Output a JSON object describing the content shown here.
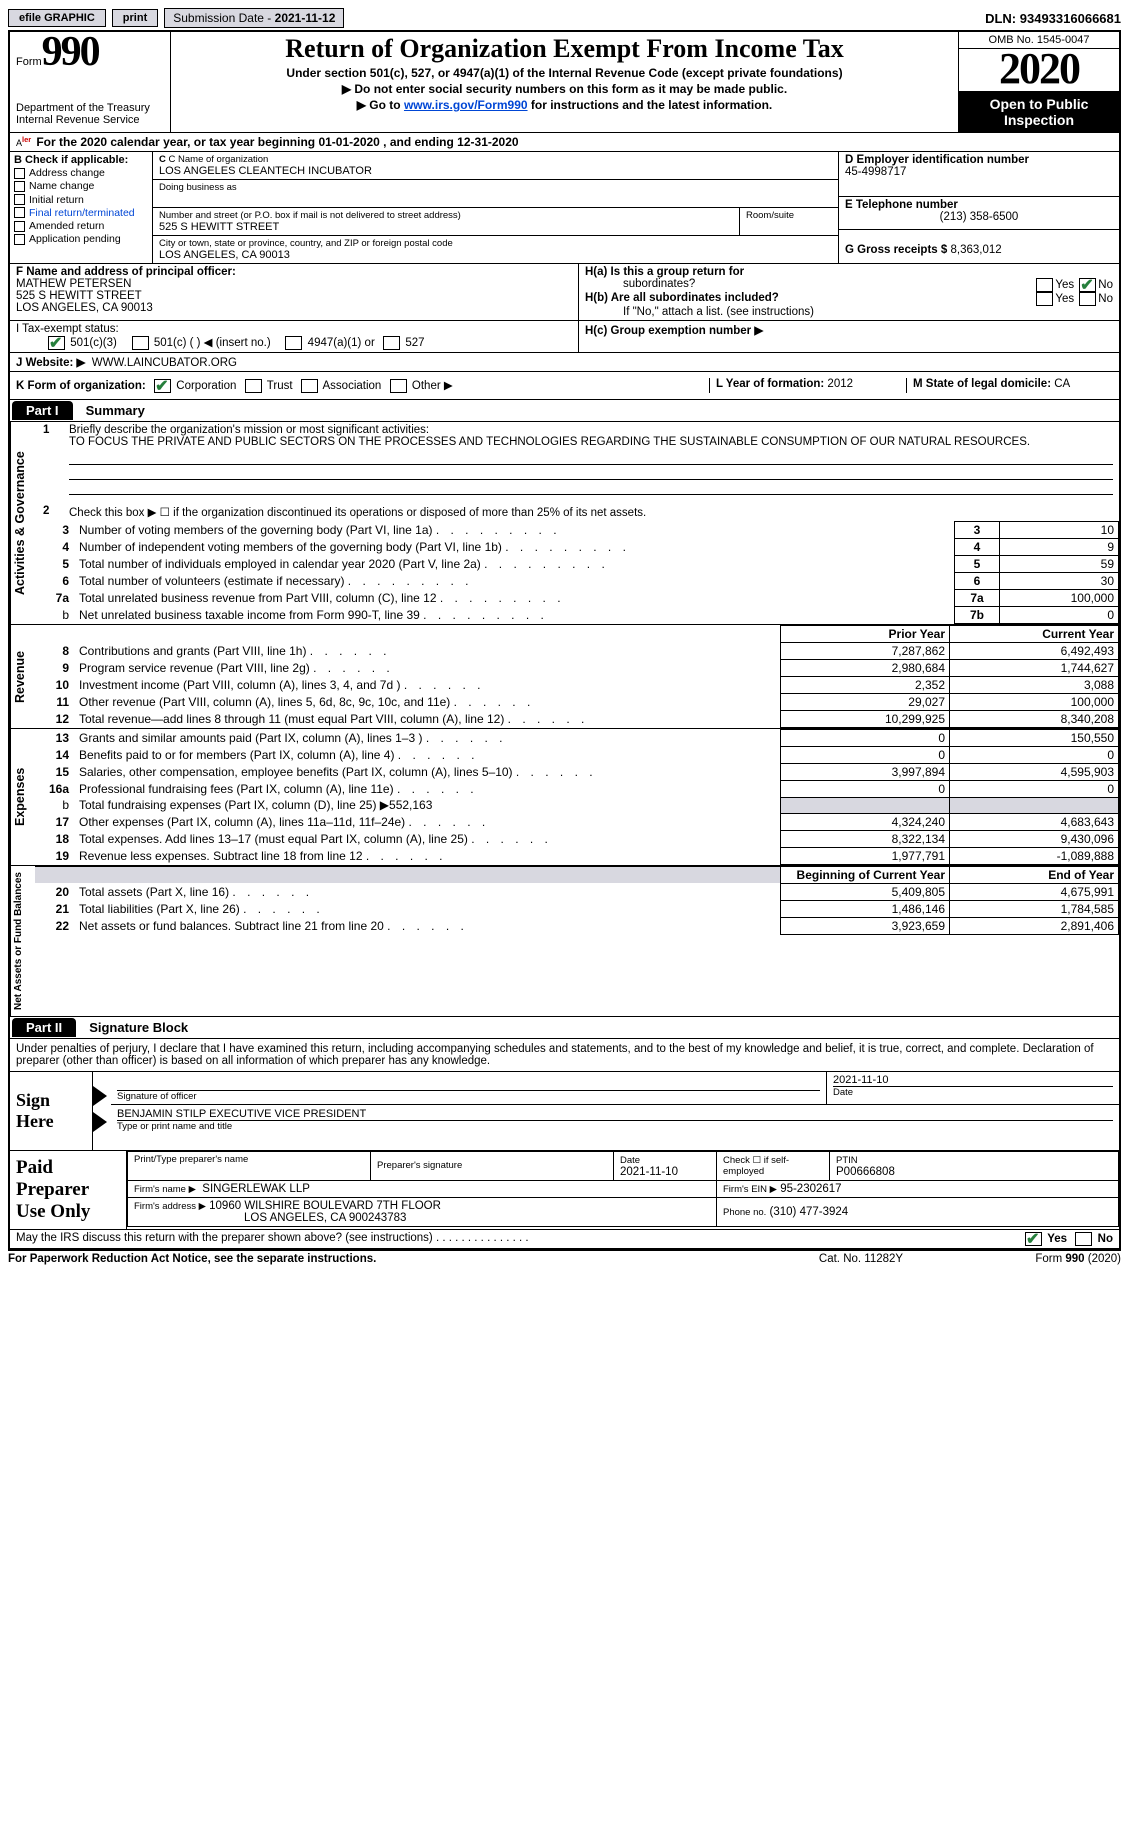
{
  "topbar": {
    "efile": "efile GRAPHIC",
    "print": "print",
    "submission_label": "Submission Date -",
    "submission_date": "2021-11-12",
    "dln_label": "DLN:",
    "dln": "93493316066681"
  },
  "header": {
    "form_prefix": "Form",
    "form_number": "990",
    "dept1": "Department of the Treasury",
    "dept2": "Internal Revenue Service",
    "title": "Return of Organization Exempt From Income Tax",
    "subtitle": "Under section 501(c), 527, or 4947(a)(1) of the Internal Revenue Code (except private foundations)",
    "donot": "▶ Do not enter social security numbers on this form as it may be made public.",
    "goto_prefix": "▶ Go to ",
    "goto_link": "www.irs.gov/Form990",
    "goto_suffix": " for instructions and the latest information.",
    "omb": "OMB No. 1545-0047",
    "year": "2020",
    "open1": "Open to Public",
    "open2": "Inspection"
  },
  "periodA": {
    "prefix": "A",
    "alert_suffix": "lert",
    "text": "For the 2020 calendar year, or tax year beginning 01-01-2020     , and ending 12-31-2020"
  },
  "B": {
    "hdr": "B Check if applicable:",
    "items": [
      "Address change",
      "Name change",
      "Initial return",
      "Final return/terminated",
      "Amended return",
      "Application pending"
    ]
  },
  "C": {
    "c_lbl": "C Name of organization",
    "org": "LOS ANGELES CLEANTECH INCUBATOR",
    "dba_lbl": "Doing business as",
    "dba": "",
    "addr_lbl": "Number and street (or P.O. box if mail is not delivered to street address)",
    "room_lbl": "Room/suite",
    "addr": "525 S HEWITT STREET",
    "city_lbl": "City or town, state or province, country, and ZIP or foreign postal code",
    "city": "LOS ANGELES, CA  90013"
  },
  "DE": {
    "d_lbl": "D Employer identification number",
    "ein": "45-4998717",
    "e_lbl": "E Telephone number",
    "phone": "(213) 358-6500",
    "g_lbl": "G Gross receipts $",
    "gross": "8,363,012"
  },
  "F": {
    "lbl": "F  Name and address of principal officer:",
    "name": "MATHEW PETERSEN",
    "addr1": "525 S HEWITT STREET",
    "addr2": "LOS ANGELES, CA  90013"
  },
  "H": {
    "a_lbl": "H(a)  Is this a group return for",
    "a_sub": "subordinates?",
    "b_lbl": "H(b)  Are all subordinates included?",
    "b_note": "If \"No,\" attach a list. (see instructions)",
    "c_lbl": "H(c)  Group exemption number ▶",
    "yes": "Yes",
    "no": "No"
  },
  "I": {
    "lbl": "I     Tax-exempt status:",
    "opts": [
      "501(c)(3)",
      "501(c) (  ) ◀ (insert no.)",
      "4947(a)(1) or",
      "527"
    ]
  },
  "J": {
    "lbl": "J    Website: ▶",
    "val": "WWW.LAINCUBATOR.ORG"
  },
  "K": {
    "lbl": "K Form of organization:",
    "opts": [
      "Corporation",
      "Trust",
      "Association",
      "Other ▶"
    ]
  },
  "L": {
    "lbl": "L Year of formation:",
    "val": "2012"
  },
  "M": {
    "lbl": "M State of legal domicile:",
    "val": "CA"
  },
  "parts": {
    "p1": "Part I",
    "p1sub": "Summary",
    "p2": "Part II",
    "p2sub": "Signature Block"
  },
  "sections": {
    "ag": "Activities & Governance",
    "rev": "Revenue",
    "exp": "Expenses",
    "na": "Net Assets or\nFund Balances"
  },
  "mission_lbl": "1",
  "mission_txt": "Briefly describe the organization's mission or most significant activities:",
  "mission": "TO FOCUS THE PRIVATE AND PUBLIC SECTORS ON THE PROCESSES AND TECHNOLOGIES REGARDING THE SUSTAINABLE CONSUMPTION OF OUR NATURAL RESOURCES.",
  "line2": "Check this box ▶ ☐  if the organization discontinued its operations or disposed of more than 25% of its net assets.",
  "ag_lines": [
    {
      "n": "3",
      "t": "Number of voting members of the governing body (Part VI, line 1a)",
      "box": "3",
      "v": "10"
    },
    {
      "n": "4",
      "t": "Number of independent voting members of the governing body (Part VI, line 1b)",
      "box": "4",
      "v": "9"
    },
    {
      "n": "5",
      "t": "Total number of individuals employed in calendar year 2020 (Part V, line 2a)",
      "box": "5",
      "v": "59"
    },
    {
      "n": "6",
      "t": "Total number of volunteers (estimate if necessary)",
      "box": "6",
      "v": "30"
    },
    {
      "n": "7a",
      "t": "Total unrelated business revenue from Part VIII, column (C), line 12",
      "box": "7a",
      "v": "100,000"
    },
    {
      "n": "b",
      "t": "Net unrelated business taxable income from Form 990-T, line 39",
      "box": "7b",
      "v": "0",
      "sub": true
    }
  ],
  "cols": {
    "prior": "Prior Year",
    "current": "Current Year",
    "begin": "Beginning of Current Year",
    "end": "End of Year"
  },
  "rev_lines": [
    {
      "n": "8",
      "t": "Contributions and grants (Part VIII, line 1h)",
      "p": "7,287,862",
      "c": "6,492,493"
    },
    {
      "n": "9",
      "t": "Program service revenue (Part VIII, line 2g)",
      "p": "2,980,684",
      "c": "1,744,627"
    },
    {
      "n": "10",
      "t": "Investment income (Part VIII, column (A), lines 3, 4, and 7d )",
      "p": "2,352",
      "c": "3,088"
    },
    {
      "n": "11",
      "t": "Other revenue (Part VIII, column (A), lines 5, 6d, 8c, 9c, 10c, and 11e)",
      "p": "29,027",
      "c": "100,000"
    },
    {
      "n": "12",
      "t": "Total revenue—add lines 8 through 11 (must equal Part VIII, column (A), line 12)",
      "p": "10,299,925",
      "c": "8,340,208"
    }
  ],
  "exp_lines": [
    {
      "n": "13",
      "t": "Grants and similar amounts paid (Part IX, column (A), lines 1–3 )",
      "p": "0",
      "c": "150,550"
    },
    {
      "n": "14",
      "t": "Benefits paid to or for members (Part IX, column (A), line 4)",
      "p": "0",
      "c": "0"
    },
    {
      "n": "15",
      "t": "Salaries, other compensation, employee benefits (Part IX, column (A), lines 5–10)",
      "p": "3,997,894",
      "c": "4,595,903"
    },
    {
      "n": "16a",
      "t": "Professional fundraising fees (Part IX, column (A), line 11e)",
      "p": "0",
      "c": "0"
    }
  ],
  "exp_16b": {
    "n": "b",
    "t": "Total fundraising expenses (Part IX, column (D), line 25) ▶",
    "v": "552,163"
  },
  "exp_lines2": [
    {
      "n": "17",
      "t": "Other expenses (Part IX, column (A), lines 11a–11d, 11f–24e)",
      "p": "4,324,240",
      "c": "4,683,643"
    },
    {
      "n": "18",
      "t": "Total expenses. Add lines 13–17 (must equal Part IX, column (A), line 25)",
      "p": "8,322,134",
      "c": "9,430,096"
    },
    {
      "n": "19",
      "t": "Revenue less expenses. Subtract line 18 from line 12",
      "p": "1,977,791",
      "c": "-1,089,888"
    }
  ],
  "na_lines": [
    {
      "n": "20",
      "t": "Total assets (Part X, line 16)",
      "p": "5,409,805",
      "c": "4,675,991"
    },
    {
      "n": "21",
      "t": "Total liabilities (Part X, line 26)",
      "p": "1,486,146",
      "c": "1,784,585"
    },
    {
      "n": "22",
      "t": "Net assets or fund balances. Subtract line 21 from line 20",
      "p": "3,923,659",
      "c": "2,891,406"
    }
  ],
  "penalties": "Under penalties of perjury, I declare that I have examined this return, including accompanying schedules and statements, and to the best of my knowledge and belief, it is true, correct, and complete. Declaration of preparer (other than officer) is based on all information of which preparer has any knowledge.",
  "sign": {
    "here": "Sign\nHere",
    "sig_of_officer": "Signature of officer",
    "date_lbl": "Date",
    "date": "2021-11-10",
    "officer_name": "BENJAMIN STILP  EXECUTIVE VICE PRESIDENT",
    "type_lbl": "Type or print name and title"
  },
  "paid": {
    "title": "Paid\nPreparer\nUse Only",
    "h1": "Print/Type preparer's name",
    "h2": "Preparer's signature",
    "h3_lbl": "Date",
    "h3": "2021-11-10",
    "h4_lbl": "Check ☐ if self-employed",
    "h5_lbl": "PTIN",
    "ptin": "P00666808",
    "firm_name_lbl": "Firm's name    ▶",
    "firm_name": "SINGERLEWAK LLP",
    "firm_ein_lbl": "Firm's EIN ▶",
    "firm_ein": "95-2302617",
    "firm_addr_lbl": "Firm's address ▶",
    "firm_addr1": "10960 WILSHIRE BOULEVARD 7TH FLOOR",
    "firm_addr2": "LOS ANGELES, CA  900243783",
    "phone_lbl": "Phone no.",
    "phone": "(310) 477-3924"
  },
  "discuss": "May the IRS discuss this return with the preparer shown above? (see instructions)",
  "footer": {
    "pra": "For Paperwork Reduction Act Notice, see the separate instructions.",
    "cat": "Cat. No. 11282Y",
    "form": "Form 990 (2020)"
  },
  "colors": {
    "button_bg": "#d8d8e0",
    "check_green": "#267f3c",
    "link": "#0046d5"
  }
}
